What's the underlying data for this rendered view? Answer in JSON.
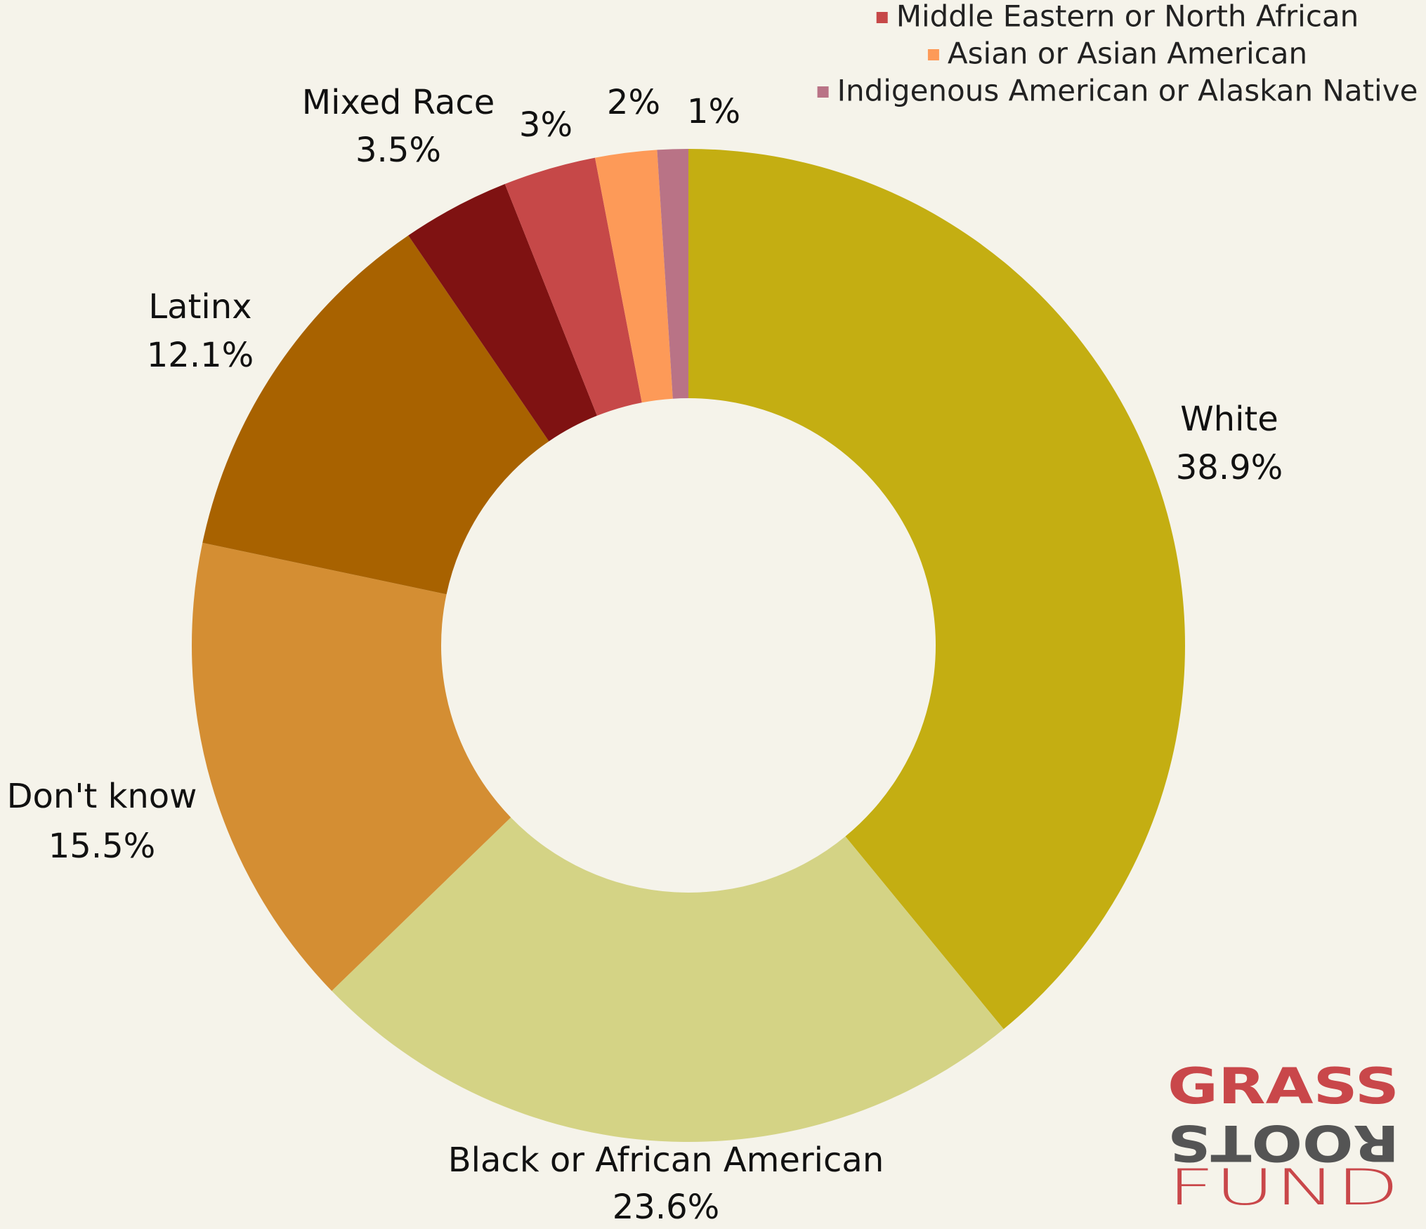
{
  "chart_data": {
    "type": "donut",
    "categories": [
      "White",
      "Black or African American",
      "Don't know",
      "Latinx",
      "Mixed Race",
      "Middle Eastern or North African",
      "Asian or Asian American",
      "Indigenous American or Alaskan Native"
    ],
    "values": [
      38.9,
      23.6,
      15.5,
      12.1,
      3.5,
      3,
      2,
      1
    ],
    "value_labels": [
      "38.9%",
      "23.6%",
      "15.5%",
      "12.1%",
      "3.5%",
      "3%",
      "2%",
      "1%"
    ],
    "colors": [
      "#c4ae12",
      "#d4d385",
      "#d48e33",
      "#a86200",
      "#7f1212",
      "#c64848",
      "#fd9a58",
      "#b97386"
    ],
    "legend": "top-right"
  },
  "logo": [
    "GRASS",
    "ROOTS",
    "FUND"
  ]
}
